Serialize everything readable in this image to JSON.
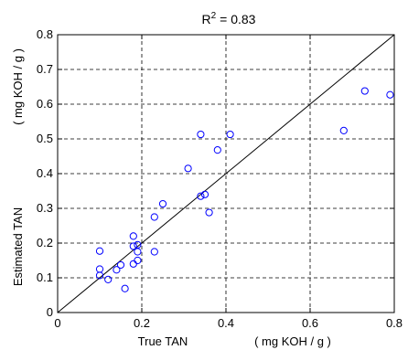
{
  "chart_data": {
    "type": "scatter",
    "title_base": "R",
    "title_sup": "2",
    "title_value": " = 0.83",
    "xlabel_left": "True  TAN",
    "xlabel_unit": "( mg KOH / g )",
    "ylabel_left": "Estimated  TAN",
    "ylabel_unit": "( mg KOH / g )",
    "xlim": [
      0,
      0.8
    ],
    "ylim": [
      0,
      0.8
    ],
    "xticks": [
      "0",
      "0.2",
      "0.4",
      "0.6",
      "0.8"
    ],
    "yticks": [
      "0",
      "0.1",
      "0.2",
      "0.3",
      "0.4",
      "0.5",
      "0.6",
      "0.7",
      "0.8"
    ],
    "xtick_values": [
      0,
      0.2,
      0.4,
      0.6,
      0.8
    ],
    "ytick_values": [
      0,
      0.1,
      0.2,
      0.3,
      0.4,
      0.5,
      0.6,
      0.7,
      0.8
    ],
    "grid": true,
    "reference_line": [
      [
        0,
        0
      ],
      [
        0.8,
        0.8
      ]
    ],
    "marker_color": "#0000ff",
    "points": [
      {
        "x": 0.1,
        "y": 0.177
      },
      {
        "x": 0.1,
        "y": 0.125
      },
      {
        "x": 0.1,
        "y": 0.107
      },
      {
        "x": 0.12,
        "y": 0.095
      },
      {
        "x": 0.14,
        "y": 0.123
      },
      {
        "x": 0.15,
        "y": 0.137
      },
      {
        "x": 0.16,
        "y": 0.069
      },
      {
        "x": 0.18,
        "y": 0.22
      },
      {
        "x": 0.18,
        "y": 0.191
      },
      {
        "x": 0.18,
        "y": 0.14
      },
      {
        "x": 0.19,
        "y": 0.175
      },
      {
        "x": 0.19,
        "y": 0.195
      },
      {
        "x": 0.19,
        "y": 0.15
      },
      {
        "x": 0.23,
        "y": 0.275
      },
      {
        "x": 0.23,
        "y": 0.175
      },
      {
        "x": 0.25,
        "y": 0.313
      },
      {
        "x": 0.31,
        "y": 0.415
      },
      {
        "x": 0.34,
        "y": 0.513
      },
      {
        "x": 0.34,
        "y": 0.335
      },
      {
        "x": 0.35,
        "y": 0.34
      },
      {
        "x": 0.36,
        "y": 0.288
      },
      {
        "x": 0.38,
        "y": 0.468
      },
      {
        "x": 0.41,
        "y": 0.513
      },
      {
        "x": 0.68,
        "y": 0.524
      },
      {
        "x": 0.73,
        "y": 0.638
      },
      {
        "x": 0.79,
        "y": 0.627
      }
    ]
  }
}
